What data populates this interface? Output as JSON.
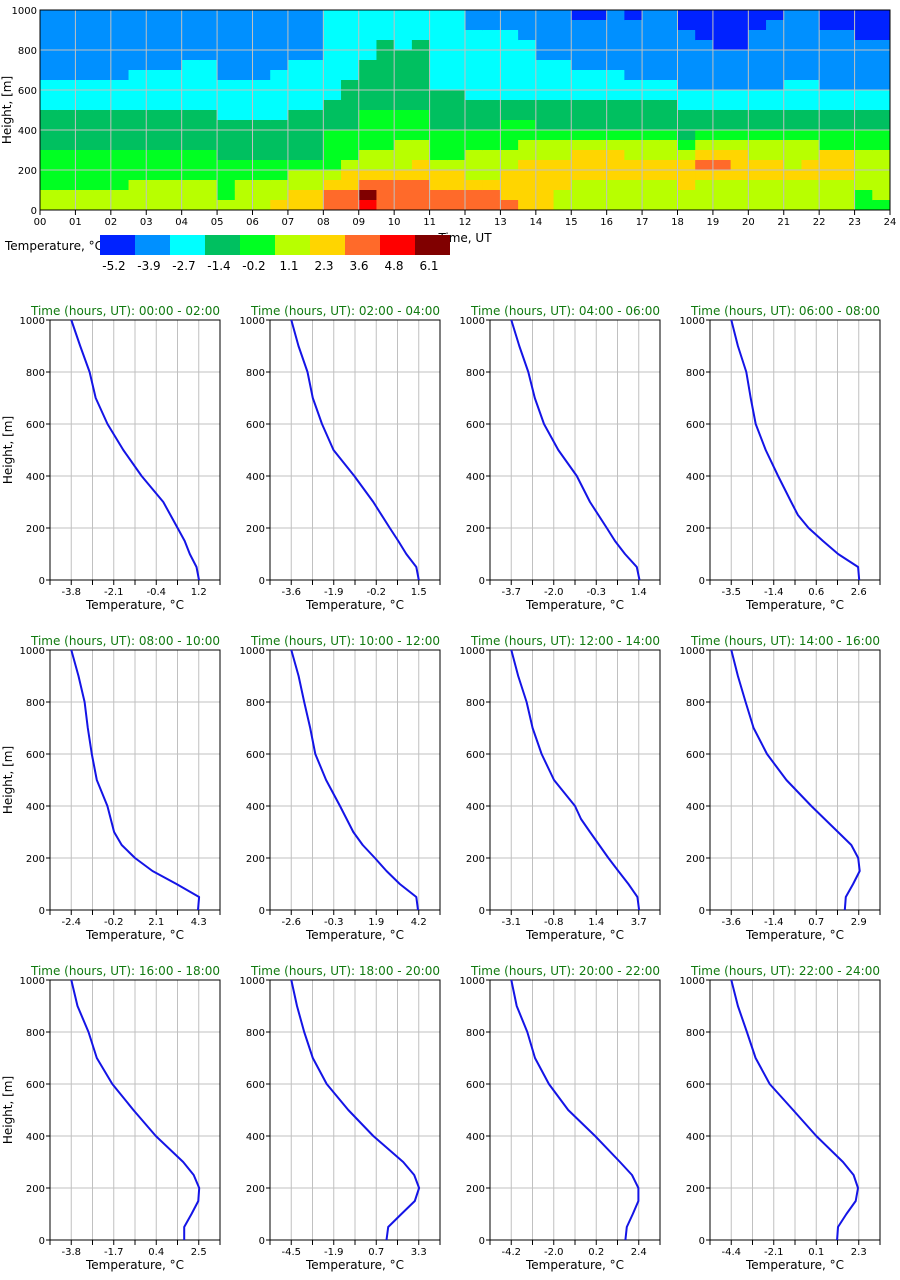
{
  "chart_data": [
    {
      "type": "heatmap",
      "xlabel": "Time, UT",
      "ylabel": "Height, [m]",
      "x_ticks": [
        "00",
        "01",
        "02",
        "03",
        "04",
        "05",
        "06",
        "07",
        "08",
        "09",
        "10",
        "11",
        "12",
        "13",
        "14",
        "15",
        "16",
        "17",
        "18",
        "19",
        "20",
        "21",
        "22",
        "23",
        "24"
      ],
      "y_ticks": [
        "0",
        "200",
        "400",
        "600",
        "800",
        "1000"
      ],
      "xlim": [
        0,
        24
      ],
      "ylim": [
        0,
        1000
      ],
      "grid": true,
      "legend": {
        "label": "Temperature, °C",
        "values": [
          "-5.2",
          "-3.9",
          "-2.7",
          "-1.4",
          "-0.2",
          "1.1",
          "2.3",
          "3.6",
          "4.8",
          "6.1"
        ],
        "colors": [
          "#0022ff",
          "#0090ff",
          "#00ffff",
          "#00c060",
          "#00ff22",
          "#b8ff00",
          "#ffd500",
          "#ff6a2a",
          "#ff0000",
          "#800000"
        ]
      },
      "cell_minutes": 30,
      "cell_height_m": 50,
      "columns_top_to_bottom": [
        "11111112223333444455",
        "11111112223333444455",
        "11111112223333444455",
        "11111112223333444455",
        "11111112223333444455",
        "11111122223333444555",
        "11111122223333444555",
        "11111122223333444555",
        "11111222223333444555",
        "11111222223333444555",
        "11111112222333344445",
        "11111112222333344555",
        "11111112222333344555",
        "11111122222333344556",
        "11111222223333345566",
        "11111222223333345566",
        "22222222233344445677",
        "22222223333344456677",
        "22222333334444556798",
        "22233333334444556777",
        "22223333334445556777",
        "22233333334445566777",
        "22222222333344456677",
        "22222222333344456677",
        "11222222233344555677",
        "11222222233344555677",
        "11222222233444556667",
        "11122222233445566666",
        "11111222233345566666",
        "11111222233345566655",
        "01111122233345666555",
        "01111122233345666555",
        "11111122233345666555",
        "01111112233345566555",
        "11111112233345566555",
        "11111112233345566555",
        "00111111223334566655",
        "00011111223345676555",
        "00001111223345676555",
        "00001111223345666555",
        "00111111223345566555",
        "01111111223345566555",
        "11111112223345556555",
        "11111112223345566555",
        "00111111223344666555",
        "00111111223344666555",
        "00011111223344555544",
        "00011111223344555554"
      ]
    },
    {
      "type": "line",
      "title": "Time (hours, UT): 00:00 - 02:00",
      "xlabel": "Temperature, °C",
      "ylabel": "Height, [m]",
      "x_tick_labels": [
        "-3.8",
        "-2.1",
        "-0.4",
        "1.2"
      ],
      "y_ticks": [
        "0",
        "200",
        "400",
        "600",
        "800",
        "1000"
      ],
      "ylim": [
        0,
        1000
      ],
      "heights": [
        0,
        50,
        100,
        150,
        200,
        300,
        400,
        500,
        600,
        700,
        800,
        900,
        1000
      ],
      "temps": [
        1.21,
        1.11,
        0.85,
        0.65,
        0.37,
        -0.19,
        -1.04,
        -1.76,
        -2.38,
        -2.84,
        -3.08,
        -3.45,
        -3.8
      ]
    },
    {
      "type": "line",
      "title": "Time (hours, UT): 02:00 - 04:00",
      "xlabel": "Temperature, °C",
      "x_tick_labels": [
        "-3.6",
        "-1.9",
        "-0.2",
        "1.5"
      ],
      "y_ticks": [
        "0",
        "200",
        "400",
        "600",
        "800",
        "1000"
      ],
      "ylim": [
        0,
        1000
      ],
      "heights": [
        0,
        50,
        100,
        150,
        200,
        300,
        400,
        500,
        600,
        700,
        800,
        900,
        1000
      ],
      "temps": [
        1.5,
        1.4,
        1.0,
        0.68,
        0.34,
        -0.32,
        -1.08,
        -1.91,
        -2.37,
        -2.74,
        -2.95,
        -3.31,
        -3.6
      ]
    },
    {
      "type": "line",
      "title": "Time (hours, UT): 04:00 - 06:00",
      "xlabel": "Temperature, °C",
      "x_tick_labels": [
        "-3.7",
        "-2.0",
        "-0.3",
        "1.4"
      ],
      "y_ticks": [
        "0",
        "200",
        "400",
        "600",
        "800",
        "1000"
      ],
      "ylim": [
        0,
        1000
      ],
      "heights": [
        0,
        50,
        100,
        150,
        200,
        300,
        400,
        500,
        600,
        700,
        800,
        900,
        1000
      ],
      "temps": [
        1.43,
        1.32,
        0.85,
        0.45,
        0.12,
        -0.55,
        -1.08,
        -1.82,
        -2.39,
        -2.76,
        -3.02,
        -3.38,
        -3.7
      ]
    },
    {
      "type": "line",
      "title": "Time (hours, UT): 06:00 - 08:00",
      "xlabel": "Temperature, °C",
      "x_tick_labels": [
        "-3.5",
        "-1.4",
        "0.6",
        "2.6"
      ],
      "y_ticks": [
        "0",
        "200",
        "400",
        "600",
        "800",
        "1000"
      ],
      "ylim": [
        0,
        1000
      ],
      "heights": [
        0,
        50,
        100,
        150,
        200,
        250,
        300,
        400,
        500,
        600,
        700,
        800,
        900,
        1000
      ],
      "temps": [
        2.62,
        2.57,
        1.61,
        0.89,
        0.2,
        -0.31,
        -0.63,
        -1.26,
        -1.85,
        -2.33,
        -2.57,
        -2.78,
        -3.18,
        -3.5
      ]
    },
    {
      "type": "line",
      "title": "Time (hours, UT): 08:00 - 10:00",
      "xlabel": "Temperature, °C",
      "ylabel": "Height, [m]",
      "x_tick_labels": [
        "-2.4",
        "-0.2",
        "2.1",
        "4.3"
      ],
      "y_ticks": [
        "0",
        "200",
        "400",
        "600",
        "800",
        "1000"
      ],
      "ylim": [
        0,
        1000
      ],
      "heights": [
        0,
        50,
        100,
        150,
        200,
        250,
        300,
        400,
        500,
        600,
        700,
        800,
        900,
        1000
      ],
      "temps": [
        4.26,
        4.32,
        3.13,
        1.87,
        0.95,
        0.25,
        -0.15,
        -0.5,
        -1.06,
        -1.32,
        -1.53,
        -1.7,
        -2.02,
        -2.4
      ]
    },
    {
      "type": "line",
      "title": "Time (hours, UT): 10:00 - 12:00",
      "xlabel": "Temperature, °C",
      "x_tick_labels": [
        "-2.6",
        "-0.3",
        "1.9",
        "4.2"
      ],
      "y_ticks": [
        "0",
        "200",
        "400",
        "600",
        "800",
        "1000"
      ],
      "ylim": [
        0,
        1000
      ],
      "heights": [
        0,
        50,
        100,
        150,
        200,
        250,
        300,
        400,
        500,
        600,
        700,
        800,
        900,
        1000
      ],
      "temps": [
        4.16,
        4.07,
        3.19,
        2.48,
        1.86,
        1.21,
        0.71,
        0.0,
        -0.74,
        -1.32,
        -1.59,
        -1.91,
        -2.21,
        -2.6
      ]
    },
    {
      "type": "line",
      "title": "Time (hours, UT): 12:00 - 14:00",
      "xlabel": "Temperature, °C",
      "x_tick_labels": [
        "-3.1",
        "-0.8",
        "1.4",
        "3.7"
      ],
      "y_ticks": [
        "0",
        "200",
        "400",
        "600",
        "800",
        "1000"
      ],
      "ylim": [
        0,
        1000
      ],
      "heights": [
        0,
        50,
        100,
        150,
        200,
        300,
        350,
        400,
        500,
        600,
        700,
        800,
        900,
        1000
      ],
      "temps": [
        3.72,
        3.63,
        3.15,
        2.61,
        2.08,
        1.1,
        0.62,
        0.3,
        -0.82,
        -1.48,
        -1.96,
        -2.28,
        -2.73,
        -3.1
      ]
    },
    {
      "type": "line",
      "title": "Time (hours, UT): 14:00 - 16:00",
      "xlabel": "Temperature, °C",
      "x_tick_labels": [
        "-3.6",
        "-1.4",
        "0.7",
        "2.9"
      ],
      "y_ticks": [
        "0",
        "200",
        "400",
        "600",
        "800",
        "1000"
      ],
      "ylim": [
        0,
        1000
      ],
      "heights": [
        0,
        50,
        100,
        150,
        200,
        250,
        300,
        400,
        500,
        600,
        700,
        800,
        900,
        1000
      ],
      "temps": [
        2.19,
        2.24,
        2.61,
        2.95,
        2.87,
        2.52,
        1.84,
        0.48,
        -0.79,
        -1.78,
        -2.46,
        -2.87,
        -3.26,
        -3.6
      ]
    },
    {
      "type": "line",
      "title": "Time (hours, UT): 16:00 - 18:00",
      "xlabel": "Temperature, °C",
      "ylabel": "Height, [m]",
      "x_tick_labels": [
        "-3.8",
        "-1.7",
        "0.4",
        "2.5"
      ],
      "y_ticks": [
        "0",
        "200",
        "400",
        "600",
        "800",
        "1000"
      ],
      "ylim": [
        0,
        1000
      ],
      "heights": [
        0,
        50,
        100,
        150,
        200,
        250,
        300,
        400,
        500,
        600,
        700,
        800,
        900,
        1000
      ],
      "temps": [
        1.78,
        1.78,
        2.14,
        2.48,
        2.52,
        2.25,
        1.73,
        0.38,
        -0.73,
        -1.77,
        -2.54,
        -2.95,
        -3.49,
        -3.8
      ]
    },
    {
      "type": "line",
      "title": "Time (hours, UT): 18:00 - 20:00",
      "xlabel": "Temperature, °C",
      "x_tick_labels": [
        "-4.5",
        "-1.9",
        "0.7",
        "3.3"
      ],
      "y_ticks": [
        "0",
        "200",
        "400",
        "600",
        "800",
        "1000"
      ],
      "ylim": [
        0,
        1000
      ],
      "heights": [
        0,
        50,
        100,
        150,
        200,
        250,
        300,
        400,
        500,
        600,
        700,
        800,
        900,
        1000
      ],
      "temps": [
        1.33,
        1.43,
        2.24,
        3.06,
        3.32,
        3.02,
        2.35,
        0.52,
        -1.01,
        -2.33,
        -3.18,
        -3.71,
        -4.15,
        -4.5
      ]
    },
    {
      "type": "line",
      "title": "Time (hours, UT): 20:00 - 22:00",
      "xlabel": "Temperature, °C",
      "x_tick_labels": [
        "-4.2",
        "-2.0",
        "0.2",
        "2.4"
      ],
      "y_ticks": [
        "0",
        "200",
        "400",
        "600",
        "800",
        "1000"
      ],
      "ylim": [
        0,
        1000
      ],
      "heights": [
        0,
        50,
        100,
        150,
        200,
        250,
        300,
        400,
        500,
        600,
        700,
        800,
        900,
        1000
      ],
      "temps": [
        1.71,
        1.78,
        2.09,
        2.38,
        2.38,
        2.05,
        1.43,
        0.14,
        -1.25,
        -2.25,
        -2.97,
        -3.37,
        -3.92,
        -4.2
      ]
    },
    {
      "type": "line",
      "title": "Time (hours, UT): 22:00 - 24:00",
      "xlabel": "Temperature, °C",
      "x_tick_labels": [
        "-4.4",
        "-2.1",
        "0.1",
        "2.3"
      ],
      "y_ticks": [
        "0",
        "200",
        "400",
        "600",
        "800",
        "1000"
      ],
      "ylim": [
        0,
        1000
      ],
      "heights": [
        0,
        50,
        100,
        150,
        200,
        250,
        300,
        400,
        500,
        600,
        700,
        800,
        900,
        1000
      ],
      "temps": [
        1.16,
        1.21,
        1.65,
        2.14,
        2.26,
        2.03,
        1.47,
        0.07,
        -1.15,
        -2.38,
        -3.12,
        -3.58,
        -4.05,
        -4.4
      ]
    }
  ],
  "colors": {
    "profile_line": "#1414e6",
    "title": "#107a10",
    "grid": "#c0c0c0"
  }
}
